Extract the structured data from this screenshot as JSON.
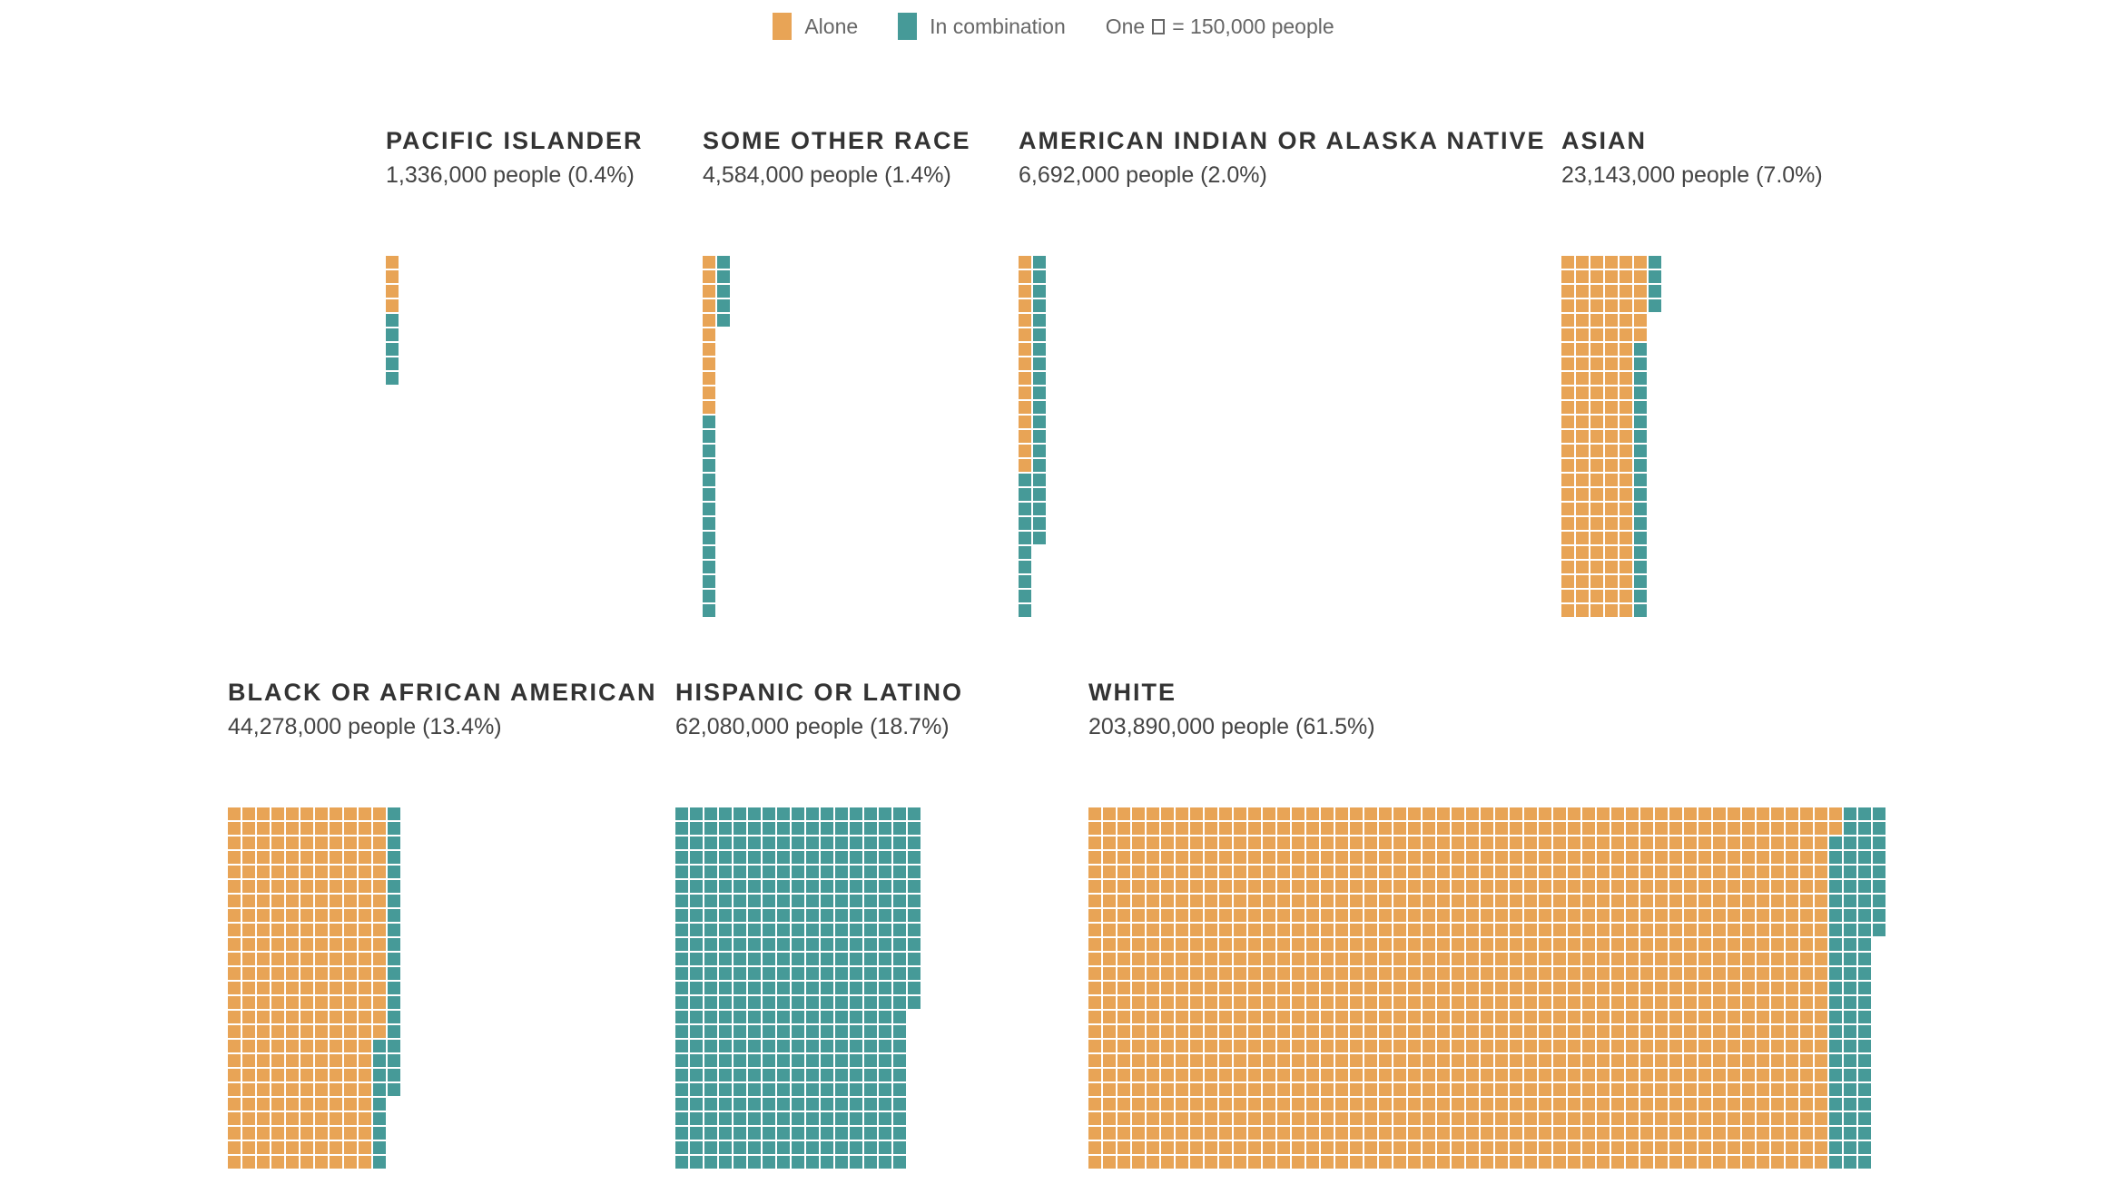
{
  "legend": {
    "alone_label": "Alone",
    "combination_label": "In combination",
    "unit_prefix": "One",
    "unit_suffix": "= 150,000 people"
  },
  "colors": {
    "alone": "#E8A456",
    "combination": "#469A98"
  },
  "chart_data": {
    "type": "waffle",
    "unit_people_per_square": 150000,
    "squares_per_column": 25,
    "fill_order": "column-major, alone first",
    "series": [
      "Alone",
      "In combination"
    ],
    "groups": [
      {
        "title": "PACIFIC ISLANDER",
        "subtitle": "1,336,000 people (0.4%)",
        "alone_squares": 4,
        "combination_squares": 5
      },
      {
        "title": "SOME OTHER RACE",
        "subtitle": "4,584,000 people (1.4%)",
        "alone_squares": 11,
        "combination_squares": 19
      },
      {
        "title": "AMERICAN INDIAN OR ALASKA NATIVE",
        "subtitle": "6,692,000 people (2.0%)",
        "alone_squares": 15,
        "combination_squares": 30
      },
      {
        "title": "ASIAN",
        "subtitle": "23,143,000 people (7.0%)",
        "alone_squares": 131,
        "combination_squares": 23
      },
      {
        "title": "BLACK OR AFRICAN AMERICAN",
        "subtitle": "44,278,000 people (13.4%)",
        "alone_squares": 266,
        "combination_squares": 29
      },
      {
        "title": "HISPANIC OR LATINO",
        "subtitle": "62,080,000 people (18.7%)",
        "alone_squares": 0,
        "combination_squares": 414
      },
      {
        "title": "WHITE",
        "subtitle": "203,890,000 people (61.5%)",
        "alone_squares": 1277,
        "combination_squares": 82
      }
    ]
  }
}
